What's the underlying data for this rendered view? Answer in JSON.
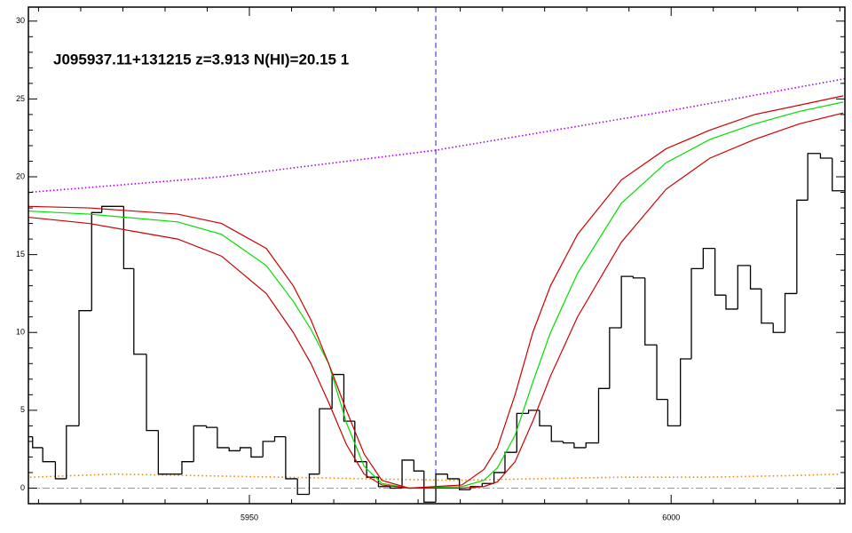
{
  "chart_data": {
    "type": "spectrum",
    "annotation": "J095937.11+131215 z=3.913 N(HI)=20.15 1",
    "xlim": [
      5923.8,
      6020.6
    ],
    "ylim": [
      -1,
      30.9
    ],
    "xticks": [
      5950,
      6000
    ],
    "yticks": [
      0,
      5,
      10,
      15,
      20,
      25,
      30
    ],
    "xminorticks": [
      5925,
      5930,
      5935,
      5940,
      5945,
      5955,
      5960,
      5965,
      5970,
      5975,
      5980,
      5985,
      5990,
      5995,
      6005,
      6010,
      6015,
      6020
    ],
    "yminorticks": [
      1,
      2,
      3,
      4,
      6,
      7,
      8,
      9,
      11,
      12,
      13,
      14,
      16,
      17,
      18,
      19,
      21,
      22,
      23,
      24,
      26,
      27,
      28,
      29
    ],
    "hline": 0,
    "hline_color": "#999999",
    "vline": 5972.1,
    "vline_color": "#2222cc",
    "histogram": {
      "color": "#000000",
      "bins": [
        5923.8,
        5924.3,
        5925.5,
        5927.0,
        5928.3,
        5929.8,
        5931.3,
        5932.5,
        5933.8,
        5935.1,
        5936.3,
        5937.8,
        5939.2,
        5940.5,
        5942.0,
        5943.4,
        5944.9,
        5946.2,
        5947.6,
        5948.9,
        5950.2,
        5951.6,
        5953.0,
        5954.3,
        5955.7,
        5957.1,
        5958.3,
        5959.8,
        5961.2,
        5962.5,
        5963.9,
        5965.3,
        5966.7,
        5968.1,
        5969.5,
        5970.7,
        5972.1,
        5973.5,
        5974.9,
        5976.2,
        5977.6,
        5979.0,
        5980.3,
        5981.7,
        5983.1,
        5984.4,
        5985.8,
        5987.2,
        5988.5,
        5989.9,
        5991.4,
        5992.7,
        5994.1,
        5995.5,
        5996.9,
        5998.3,
        5999.6,
        6001.1,
        6002.4,
        6003.8,
        6005.2,
        6006.5,
        6007.9,
        6009.4,
        6010.7,
        6012.1,
        6013.5,
        6014.9,
        6016.2,
        6017.7,
        6019.1,
        6020.6
      ],
      "values": [
        3.3,
        2.6,
        1.7,
        0.6,
        4.0,
        11.4,
        17.7,
        18.1,
        18.1,
        14.1,
        8.6,
        3.7,
        0.9,
        0.9,
        1.7,
        4.0,
        3.9,
        2.6,
        2.4,
        2.6,
        2.0,
        3.0,
        3.3,
        0.6,
        -0.4,
        0.9,
        5.1,
        7.3,
        4.3,
        1.7,
        0.7,
        0.1,
        0.0,
        1.8,
        1.1,
        -0.9,
        0.9,
        0.6,
        -0.1,
        0.1,
        0.3,
        1.0,
        2.3,
        4.8,
        5.0,
        4.0,
        3.0,
        2.9,
        2.6,
        2.9,
        6.4,
        10.3,
        13.6,
        13.5,
        9.2,
        5.7,
        4.0,
        8.3,
        14.1,
        15.4,
        12.4,
        11.5,
        14.3,
        12.8,
        10.6,
        10.0,
        12.5,
        18.5,
        21.5,
        21.2,
        19.1
      ]
    },
    "models": {
      "x": [
        5923.8,
        5931.0,
        5941.5,
        5946.7,
        5952.0,
        5955.2,
        5957.3,
        5959.4,
        5961.5,
        5963.6,
        5965.7,
        5968.9,
        5975.2,
        5977.8,
        5979.4,
        5981.5,
        5983.6,
        5985.7,
        5988.9,
        5994.1,
        5999.4,
        6004.6,
        6009.9,
        6015.2,
        6020.4
      ],
      "series": [
        {
          "color": "#00dd00",
          "values": [
            17.8,
            17.6,
            17.1,
            16.3,
            14.3,
            12.0,
            10.2,
            8.0,
            4.2,
            1.4,
            0.3,
            0.0,
            0.1,
            0.5,
            1.3,
            3.4,
            6.8,
            10.0,
            13.8,
            18.3,
            20.9,
            22.4,
            23.4,
            24.2,
            24.8
          ]
        },
        {
          "color": "#cc0000",
          "values": [
            18.1,
            18.0,
            17.6,
            17.0,
            15.4,
            13.0,
            10.8,
            8.0,
            5.0,
            2.2,
            0.5,
            0.0,
            0.2,
            1.2,
            2.6,
            6.0,
            10.0,
            13.0,
            16.3,
            19.8,
            21.8,
            23.0,
            24.0,
            24.6,
            25.2
          ]
        },
        {
          "color": "#cc0000",
          "values": [
            17.4,
            17.0,
            16.0,
            14.9,
            12.5,
            10.0,
            8.0,
            5.5,
            2.8,
            0.9,
            0.2,
            0.0,
            0.0,
            0.1,
            0.4,
            1.7,
            4.3,
            7.2,
            11.0,
            15.8,
            19.2,
            21.2,
            22.4,
            23.4,
            24.1
          ]
        }
      ]
    },
    "continuum": {
      "color": "#aa00ee",
      "x": [
        5923.8,
        5946.7,
        5972.0,
        5999.4,
        6020.6
      ],
      "values": [
        19.0,
        20.0,
        21.7,
        24.2,
        26.3
      ]
    },
    "error": {
      "color": "#ee8800",
      "x": [
        5924,
        5934,
        5944,
        5954,
        5964,
        5974,
        5984,
        5994,
        6004,
        6014,
        6020
      ],
      "values": [
        0.7,
        0.9,
        0.8,
        0.7,
        0.6,
        0.5,
        0.6,
        0.7,
        0.7,
        0.8,
        0.9
      ]
    }
  }
}
